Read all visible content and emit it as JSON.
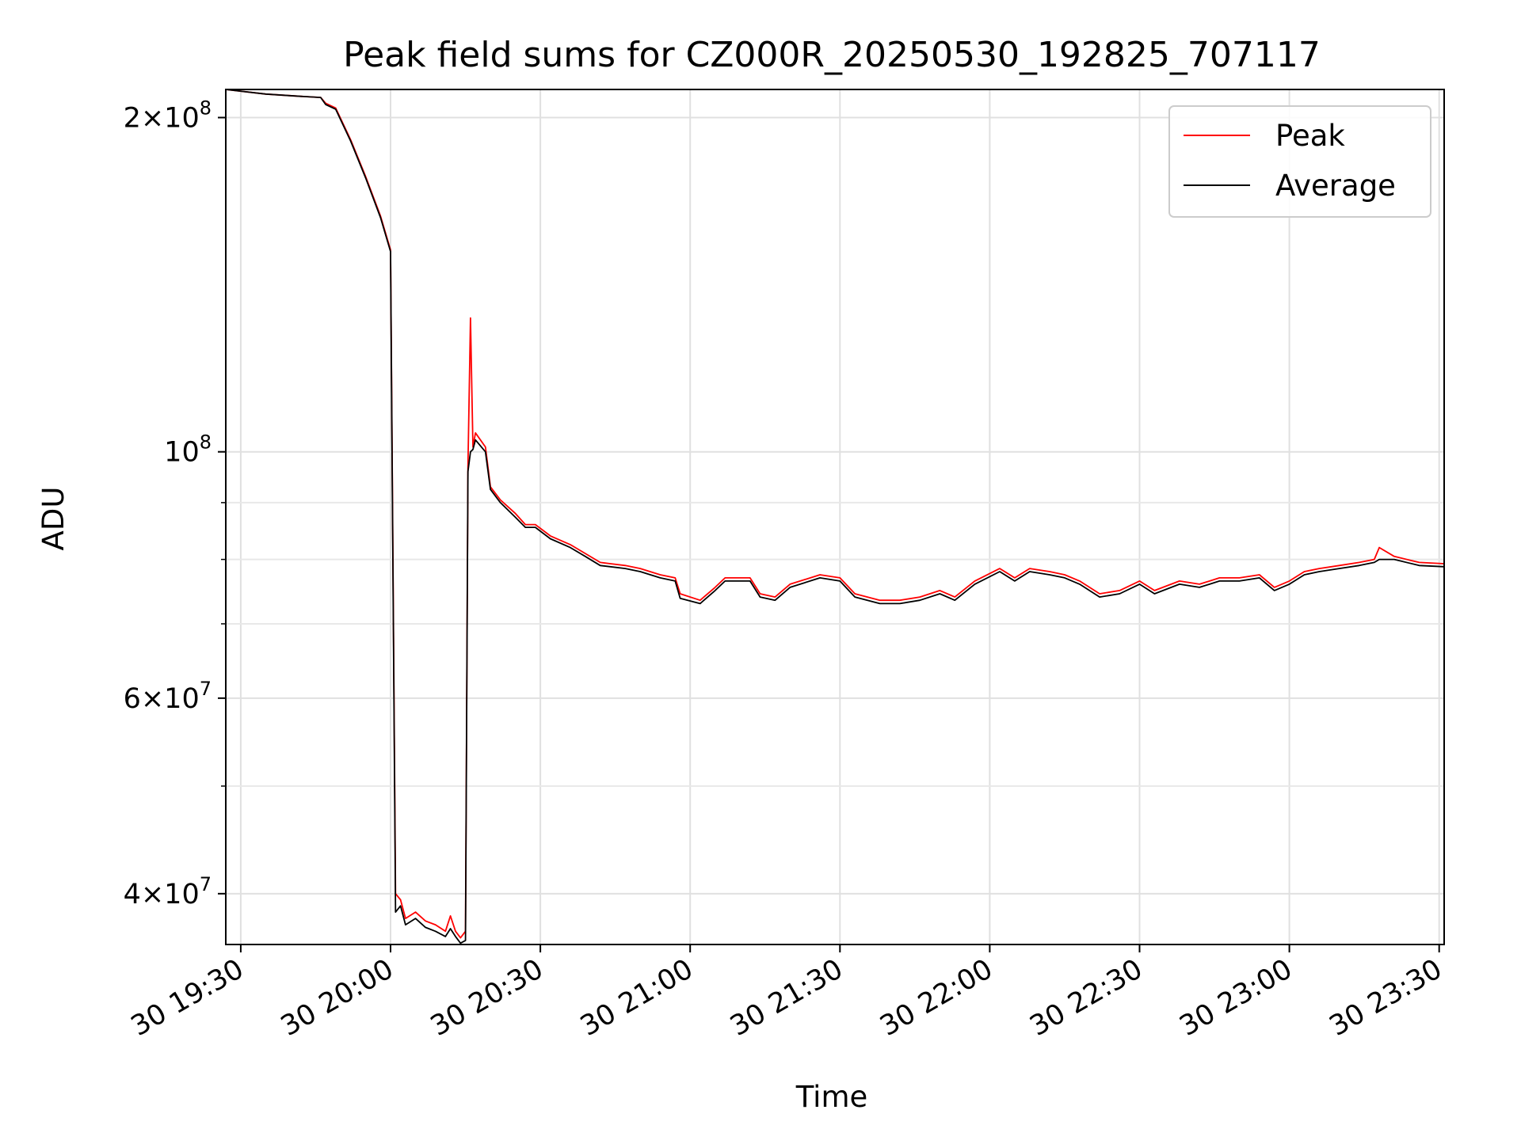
{
  "chart_data": {
    "type": "line",
    "title": "Peak field sums for CZ000R_20250530_192825_707117",
    "xlabel": "Time",
    "ylabel": "ADU",
    "x_axis": {
      "kind": "time",
      "range": [
        "2025-05-30 19:27",
        "2025-05-30 23:31"
      ],
      "ticks": [
        "19:30",
        "20:00",
        "20:30",
        "21:00",
        "21:30",
        "22:00",
        "22:30",
        "23:00",
        "23:30"
      ],
      "tick_labels": [
        "30 19:30",
        "30 20:00",
        "30 20:30",
        "30 21:00",
        "30 21:30",
        "30 22:00",
        "30 22:30",
        "30 23:00",
        "30 23:30"
      ]
    },
    "y_axis": {
      "scale": "log",
      "range": [
        36000000,
        212000000
      ],
      "major_ticks": [
        {
          "value": 40000000,
          "mantissa": "4",
          "exponent": "7"
        },
        {
          "value": 60000000,
          "mantissa": "6",
          "exponent": "7"
        },
        {
          "value": 100000000,
          "mantissa": "",
          "exponent": "8"
        },
        {
          "value": 200000000,
          "mantissa": "2",
          "exponent": "8"
        }
      ],
      "minor_ticks": [
        50000000,
        70000000,
        80000000,
        90000000
      ]
    },
    "grid": true,
    "legend_position": "top-right",
    "series": [
      {
        "name": "Peak",
        "color": "#ff0000",
        "points": [
          [
            "19:27",
            212000000
          ],
          [
            "19:35",
            210000000
          ],
          [
            "19:42",
            209000000
          ],
          [
            "19:46",
            208500000
          ],
          [
            "19:47",
            206000000
          ],
          [
            "19:49",
            204000000
          ],
          [
            "19:52",
            191000000
          ],
          [
            "19:55",
            177000000
          ],
          [
            "19:58",
            163000000
          ],
          [
            "20:00",
            152000000
          ],
          [
            "20:01",
            40000000
          ],
          [
            "20:02",
            39500000
          ],
          [
            "20:03",
            38000000
          ],
          [
            "20:05",
            38500000
          ],
          [
            "20:07",
            37800000
          ],
          [
            "20:09",
            37500000
          ],
          [
            "20:11",
            37000000
          ],
          [
            "20:12",
            38200000
          ],
          [
            "20:13",
            37000000
          ],
          [
            "20:14",
            36500000
          ],
          [
            "20:15",
            37000000
          ],
          [
            "20:15.5",
            97000000
          ],
          [
            "20:16",
            132000000
          ],
          [
            "20:16.5",
            101000000
          ],
          [
            "20:17",
            104000000
          ],
          [
            "20:19",
            101000000
          ],
          [
            "20:20",
            93000000
          ],
          [
            "20:22",
            90500000
          ],
          [
            "20:25",
            88000000
          ],
          [
            "20:27",
            86000000
          ],
          [
            "20:29",
            86000000
          ],
          [
            "20:32",
            84000000
          ],
          [
            "20:36",
            82500000
          ],
          [
            "20:39",
            81000000
          ],
          [
            "20:42",
            79500000
          ],
          [
            "20:44",
            79300000
          ],
          [
            "20:47",
            79000000
          ],
          [
            "20:50",
            78500000
          ],
          [
            "20:54",
            77500000
          ],
          [
            "20:57",
            77000000
          ],
          [
            "20:58",
            74500000
          ],
          [
            "21:02",
            73500000
          ],
          [
            "21:05",
            75500000
          ],
          [
            "21:07",
            77000000
          ],
          [
            "21:12",
            77000000
          ],
          [
            "21:14",
            74500000
          ],
          [
            "21:17",
            74000000
          ],
          [
            "21:20",
            76000000
          ],
          [
            "21:26",
            77500000
          ],
          [
            "21:30",
            77000000
          ],
          [
            "21:33",
            74500000
          ],
          [
            "21:38",
            73500000
          ],
          [
            "21:42",
            73500000
          ],
          [
            "21:46",
            74000000
          ],
          [
            "21:50",
            75000000
          ],
          [
            "21:53",
            74000000
          ],
          [
            "21:57",
            76500000
          ],
          [
            "22:02",
            78500000
          ],
          [
            "22:05",
            77000000
          ],
          [
            "22:08",
            78500000
          ],
          [
            "22:12",
            78000000
          ],
          [
            "22:15",
            77500000
          ],
          [
            "22:18",
            76500000
          ],
          [
            "22:22",
            74500000
          ],
          [
            "22:26",
            75000000
          ],
          [
            "22:30",
            76500000
          ],
          [
            "22:33",
            75000000
          ],
          [
            "22:38",
            76500000
          ],
          [
            "22:42",
            76000000
          ],
          [
            "22:46",
            77000000
          ],
          [
            "22:50",
            77000000
          ],
          [
            "22:54",
            77500000
          ],
          [
            "22:57",
            75500000
          ],
          [
            "23:00",
            76500000
          ],
          [
            "23:03",
            78000000
          ],
          [
            "23:06",
            78500000
          ],
          [
            "23:10",
            79000000
          ],
          [
            "23:14",
            79500000
          ],
          [
            "23:17",
            80000000
          ],
          [
            "23:18",
            82000000
          ],
          [
            "23:21",
            80500000
          ],
          [
            "23:26",
            79500000
          ],
          [
            "23:31",
            79300000
          ]
        ]
      },
      {
        "name": "Average",
        "color": "#000000",
        "points": [
          [
            "19:27",
            212000000
          ],
          [
            "19:35",
            210000000
          ],
          [
            "19:42",
            209000000
          ],
          [
            "19:46",
            208500000
          ],
          [
            "19:47",
            205500000
          ],
          [
            "19:49",
            203500000
          ],
          [
            "19:52",
            190500000
          ],
          [
            "19:55",
            176500000
          ],
          [
            "19:58",
            162500000
          ],
          [
            "20:00",
            151500000
          ],
          [
            "20:01",
            38500000
          ],
          [
            "20:02",
            39000000
          ],
          [
            "20:03",
            37500000
          ],
          [
            "20:05",
            38000000
          ],
          [
            "20:07",
            37300000
          ],
          [
            "20:09",
            37000000
          ],
          [
            "20:11",
            36600000
          ],
          [
            "20:12",
            37200000
          ],
          [
            "20:13",
            36600000
          ],
          [
            "20:14",
            36100000
          ],
          [
            "20:15",
            36300000
          ],
          [
            "20:15.5",
            96000000
          ],
          [
            "20:16",
            100000000
          ],
          [
            "20:16.5",
            100500000
          ],
          [
            "20:17",
            102500000
          ],
          [
            "20:19",
            100000000
          ],
          [
            "20:20",
            92500000
          ],
          [
            "20:22",
            90000000
          ],
          [
            "20:25",
            87300000
          ],
          [
            "20:27",
            85500000
          ],
          [
            "20:29",
            85500000
          ],
          [
            "20:32",
            83500000
          ],
          [
            "20:36",
            82000000
          ],
          [
            "20:39",
            80500000
          ],
          [
            "20:42",
            79000000
          ],
          [
            "20:44",
            78800000
          ],
          [
            "20:47",
            78500000
          ],
          [
            "20:50",
            78000000
          ],
          [
            "20:54",
            77000000
          ],
          [
            "20:57",
            76500000
          ],
          [
            "20:58",
            73800000
          ],
          [
            "21:02",
            73000000
          ],
          [
            "21:05",
            75000000
          ],
          [
            "21:07",
            76500000
          ],
          [
            "21:12",
            76500000
          ],
          [
            "21:14",
            74000000
          ],
          [
            "21:17",
            73500000
          ],
          [
            "21:20",
            75500000
          ],
          [
            "21:26",
            77000000
          ],
          [
            "21:30",
            76500000
          ],
          [
            "21:33",
            74000000
          ],
          [
            "21:38",
            73000000
          ],
          [
            "21:42",
            73000000
          ],
          [
            "21:46",
            73500000
          ],
          [
            "21:50",
            74500000
          ],
          [
            "21:53",
            73500000
          ],
          [
            "21:57",
            76000000
          ],
          [
            "22:02",
            78000000
          ],
          [
            "22:05",
            76500000
          ],
          [
            "22:08",
            78000000
          ],
          [
            "22:12",
            77500000
          ],
          [
            "22:15",
            77000000
          ],
          [
            "22:18",
            76000000
          ],
          [
            "22:22",
            74000000
          ],
          [
            "22:26",
            74500000
          ],
          [
            "22:30",
            76000000
          ],
          [
            "22:33",
            74500000
          ],
          [
            "22:38",
            76000000
          ],
          [
            "22:42",
            75500000
          ],
          [
            "22:46",
            76500000
          ],
          [
            "22:50",
            76500000
          ],
          [
            "22:54",
            77000000
          ],
          [
            "22:57",
            75000000
          ],
          [
            "23:00",
            76000000
          ],
          [
            "23:03",
            77500000
          ],
          [
            "23:06",
            78000000
          ],
          [
            "23:10",
            78500000
          ],
          [
            "23:14",
            79000000
          ],
          [
            "23:17",
            79500000
          ],
          [
            "23:18",
            80000000
          ],
          [
            "23:21",
            80000000
          ],
          [
            "23:26",
            79000000
          ],
          [
            "23:31",
            78800000
          ]
        ]
      }
    ]
  }
}
